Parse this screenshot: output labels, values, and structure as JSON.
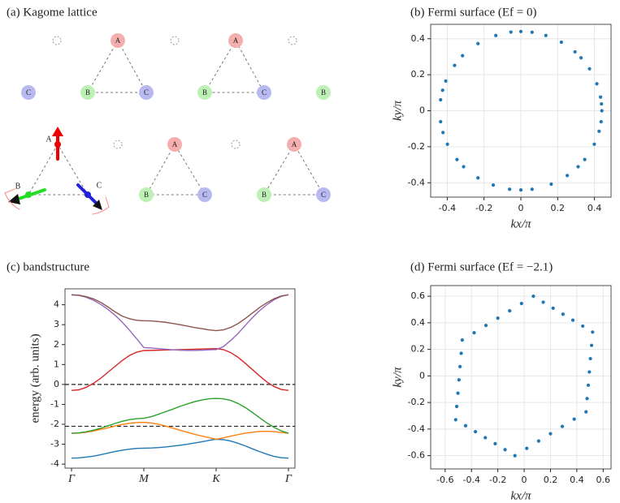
{
  "lattice": {
    "title": "(a) Kagome lattice",
    "sites": [
      "A",
      "A",
      "C",
      "B",
      "C",
      "B",
      "C",
      "B",
      "A",
      "A",
      "A",
      "B",
      "C",
      "B",
      "C",
      "B",
      "C"
    ]
  },
  "chart_data": [
    {
      "type": "scatter",
      "title": "(b) Fermi surface (Ef = 0)",
      "xlabel": "kx/π",
      "ylabel": "ky/π",
      "color": "#1f77b4",
      "grid": true,
      "xlim": [
        -0.49,
        0.49
      ],
      "ylim": [
        -0.48,
        0.48
      ],
      "xticks": [
        -0.4,
        -0.2,
        0,
        0.2,
        0.4
      ],
      "yticks": [
        -0.4,
        -0.2,
        0,
        0.2,
        0.4
      ],
      "x": [
        0.44,
        0.433,
        0.413,
        0.373,
        0.327,
        0.294,
        0.22,
        0.136,
        0.061,
        0,
        -0.054,
        -0.136,
        -0.233,
        -0.317,
        -0.36,
        -0.408,
        -0.436,
        -0.436,
        -0.423,
        -0.399,
        -0.347,
        -0.311,
        -0.233,
        -0.15,
        -0.061,
        0,
        0.061,
        0.165,
        0.252,
        0.311,
        0.347,
        0.399,
        0.425,
        0.436,
        0.438,
        -0.425
      ],
      "values": [
        0,
        0.076,
        0.15,
        0.233,
        0.294,
        0.327,
        0.381,
        0.418,
        0.436,
        0.44,
        0.437,
        0.418,
        0.373,
        0.306,
        0.252,
        0.165,
        0.061,
        -0.061,
        -0.121,
        -0.186,
        -0.271,
        -0.311,
        -0.373,
        -0.413,
        -0.436,
        -0.44,
        -0.436,
        -0.408,
        -0.36,
        -0.311,
        -0.271,
        -0.186,
        -0.114,
        -0.061,
        0.038,
        0.114
      ]
    },
    {
      "type": "line",
      "title": "(c) bandstructure",
      "ylabel": "energy (arb. units)",
      "xlim": [
        -0.09,
        3.09
      ],
      "ylim": [
        -4.2,
        4.8
      ],
      "xticks": [
        {
          "value": 0,
          "label": "Γ"
        },
        {
          "value": 1,
          "label": "M"
        },
        {
          "value": 2,
          "label": "K"
        },
        {
          "value": 3,
          "label": "Γ"
        }
      ],
      "yticks": [
        -4,
        -3,
        -2,
        -1,
        0,
        1,
        2,
        3,
        4
      ],
      "hlines": [
        0,
        -2.1
      ],
      "hline_color": "#222",
      "x": [
        0,
        0.1,
        0.2,
        0.3,
        0.4,
        0.5,
        0.6,
        0.7,
        0.8,
        0.9,
        1,
        1.1,
        1.2,
        1.3,
        1.4,
        1.5,
        1.6,
        1.7,
        1.8,
        1.9,
        2,
        2.1,
        2.2,
        2.3,
        2.4,
        2.5,
        2.6,
        2.7,
        2.8,
        2.9,
        3
      ],
      "series": [
        {
          "color": "#1f77b4",
          "values": [
            -3.7,
            -3.69,
            -3.65,
            -3.6,
            -3.53,
            -3.45,
            -3.37,
            -3.3,
            -3.25,
            -3.21,
            -3.2,
            -3.19,
            -3.17,
            -3.14,
            -3.1,
            -3.05,
            -3.0,
            -2.94,
            -2.88,
            -2.81,
            -2.75,
            -2.77,
            -2.84,
            -2.95,
            -3.08,
            -3.23,
            -3.37,
            -3.5,
            -3.61,
            -3.68,
            -3.7
          ]
        },
        {
          "color": "#ff7f0e",
          "values": [
            -2.45,
            -2.44,
            -2.4,
            -2.34,
            -2.26,
            -2.18,
            -2.09,
            -2.01,
            -1.95,
            -1.91,
            -1.9,
            -1.93,
            -2.0,
            -2.09,
            -2.19,
            -2.3,
            -2.4,
            -2.5,
            -2.59,
            -2.67,
            -2.75,
            -2.68,
            -2.6,
            -2.52,
            -2.45,
            -2.4,
            -2.36,
            -2.35,
            -2.37,
            -2.41,
            -2.45
          ]
        },
        {
          "color": "#2ca02c",
          "values": [
            -2.45,
            -2.43,
            -2.38,
            -2.3,
            -2.2,
            -2.08,
            -1.96,
            -1.85,
            -1.77,
            -1.72,
            -1.7,
            -1.62,
            -1.5,
            -1.37,
            -1.24,
            -1.1,
            -0.98,
            -0.87,
            -0.78,
            -0.72,
            -0.7,
            -0.72,
            -0.8,
            -0.95,
            -1.15,
            -1.4,
            -1.67,
            -1.93,
            -2.15,
            -2.33,
            -2.45
          ]
        },
        {
          "color": "#d62728",
          "values": [
            -0.3,
            -0.27,
            -0.15,
            0.05,
            0.3,
            0.6,
            0.9,
            1.2,
            1.45,
            1.62,
            1.7,
            1.71,
            1.72,
            1.73,
            1.74,
            1.75,
            1.76,
            1.77,
            1.78,
            1.79,
            1.8,
            1.75,
            1.6,
            1.37,
            1.07,
            0.75,
            0.43,
            0.13,
            -0.1,
            -0.25,
            -0.3
          ]
        },
        {
          "color": "#9467bd",
          "values": [
            4.5,
            4.47,
            4.38,
            4.23,
            4.03,
            3.78,
            3.48,
            3.13,
            2.73,
            2.3,
            1.85,
            1.83,
            1.8,
            1.77,
            1.74,
            1.72,
            1.71,
            1.71,
            1.72,
            1.74,
            1.75,
            1.9,
            2.2,
            2.55,
            2.95,
            3.35,
            3.7,
            4.0,
            4.25,
            4.42,
            4.5
          ]
        },
        {
          "color": "#8c564b",
          "values": [
            4.5,
            4.48,
            4.41,
            4.3,
            4.13,
            3.9,
            3.65,
            3.43,
            3.3,
            3.22,
            3.2,
            3.19,
            3.16,
            3.12,
            3.06,
            3.0,
            2.93,
            2.86,
            2.8,
            2.74,
            2.7,
            2.74,
            2.86,
            3.05,
            3.3,
            3.58,
            3.86,
            4.1,
            4.3,
            4.44,
            4.5
          ]
        }
      ]
    },
    {
      "type": "scatter",
      "title": "(d) Fermi surface (Ef = −2.1)",
      "xlabel": "kx/π",
      "ylabel": "ky/π",
      "color": "#1f77b4",
      "grid": true,
      "xlim": [
        -0.71,
        0.66
      ],
      "ylim": [
        -0.7,
        0.68
      ],
      "xticks": [
        -0.6,
        -0.4,
        -0.2,
        0,
        0.2,
        0.4,
        0.6
      ],
      "yticks": [
        -0.6,
        -0.4,
        -0.2,
        0,
        0.2,
        0.4,
        0.6
      ],
      "x": [
        0.07,
        0.145,
        0.22,
        0.295,
        0.37,
        0.445,
        0.52,
        0.512,
        0.503,
        0.495,
        0.487,
        0.478,
        0.47,
        0.38,
        0.29,
        0.2,
        0.11,
        0.02,
        -0.07,
        -0.145,
        -0.22,
        -0.295,
        -0.37,
        -0.445,
        -0.52,
        -0.512,
        -0.503,
        -0.495,
        -0.487,
        -0.478,
        -0.47,
        -0.38,
        -0.29,
        -0.2,
        -0.11,
        -0.02
      ],
      "values": [
        0.6,
        0.555,
        0.51,
        0.465,
        0.42,
        0.375,
        0.33,
        0.23,
        0.13,
        0.03,
        -0.07,
        -0.17,
        -0.27,
        -0.325,
        -0.38,
        -0.435,
        -0.49,
        -0.545,
        -0.6,
        -0.555,
        -0.51,
        -0.465,
        -0.42,
        -0.375,
        -0.33,
        -0.23,
        -0.13,
        -0.03,
        0.07,
        0.17,
        0.27,
        0.325,
        0.38,
        0.435,
        0.49,
        0.545
      ]
    }
  ]
}
